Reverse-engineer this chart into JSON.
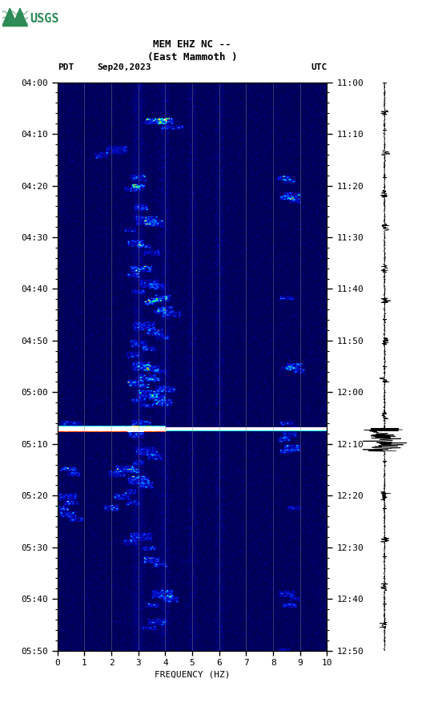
{
  "title_line1": "MEM EHZ NC --",
  "title_line2": "(East Mammoth )",
  "left_label": "PDT",
  "date_label": "Sep20,2023",
  "right_label": "UTC",
  "xlabel": "FREQUENCY (HZ)",
  "freq_min": 0,
  "freq_max": 10,
  "freq_ticks": [
    0,
    1,
    2,
    3,
    4,
    5,
    6,
    7,
    8,
    9,
    10
  ],
  "time_left_labels": [
    "04:00",
    "04:10",
    "04:20",
    "04:30",
    "04:40",
    "04:50",
    "05:00",
    "05:10",
    "05:20",
    "05:30",
    "05:40",
    "05:50"
  ],
  "time_right_labels": [
    "11:00",
    "11:10",
    "11:20",
    "11:30",
    "11:40",
    "11:50",
    "12:00",
    "12:10",
    "12:20",
    "12:30",
    "12:40",
    "12:50"
  ],
  "time_minutes_total": 110,
  "vertical_lines_freq": [
    1,
    2,
    3,
    4,
    5,
    6,
    7,
    8,
    9
  ],
  "earthquake_time_minute": 67,
  "fig_width": 5.52,
  "fig_height": 8.92,
  "dpi": 100
}
